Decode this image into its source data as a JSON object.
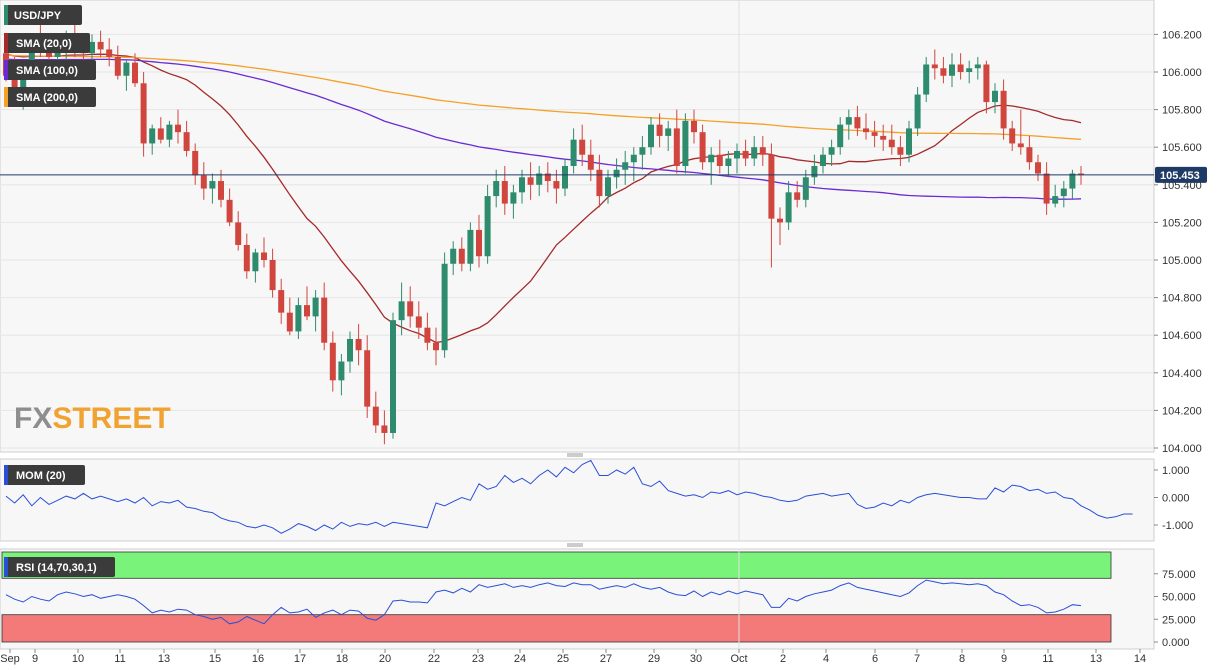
{
  "chart_data": [
    {
      "type": "candlestick",
      "symbol": "USD/JPY",
      "ylim": [
        104.0,
        106.25
      ],
      "y_ticks": [
        "106.200",
        "106.000",
        "105.800",
        "105.600",
        "105.400",
        "105.200",
        "105.000",
        "104.800",
        "104.600",
        "104.400",
        "104.200",
        "104.000"
      ],
      "x_ticks": [
        "Sep",
        "9",
        "10",
        "11",
        "13",
        "15",
        "16",
        "17",
        "18",
        "20",
        "22",
        "23",
        "24",
        "25",
        "27",
        "29",
        "30",
        "Oct",
        "2",
        "4",
        "6",
        "7",
        "8",
        "9",
        "11",
        "13",
        "14"
      ],
      "last_price": "105.453",
      "candles": [
        [
          106.1,
          106.18,
          105.95,
          105.98
        ],
        [
          105.98,
          106.08,
          105.84,
          105.92
        ],
        [
          105.92,
          106.06,
          105.8,
          106.02
        ],
        [
          106.02,
          106.2,
          105.98,
          106.15
        ],
        [
          106.15,
          106.25,
          106.08,
          106.12
        ],
        [
          106.12,
          106.2,
          106.02,
          106.08
        ],
        [
          106.08,
          106.16,
          106.0,
          106.12
        ],
        [
          106.12,
          106.22,
          106.05,
          106.18
        ],
        [
          106.18,
          106.25,
          106.08,
          106.14
        ],
        [
          106.14,
          106.2,
          106.06,
          106.1
        ],
        [
          106.1,
          106.2,
          106.04,
          106.16
        ],
        [
          106.16,
          106.22,
          106.08,
          106.12
        ],
        [
          106.12,
          106.18,
          106.03,
          106.08
        ],
        [
          106.08,
          106.14,
          105.96,
          105.98
        ],
        [
          105.98,
          106.06,
          105.9,
          106.05
        ],
        [
          106.05,
          106.1,
          105.92,
          105.94
        ],
        [
          105.94,
          106.0,
          105.55,
          105.62
        ],
        [
          105.62,
          105.72,
          105.56,
          105.7
        ],
        [
          105.7,
          105.76,
          105.62,
          105.64
        ],
        [
          105.64,
          105.74,
          105.6,
          105.72
        ],
        [
          105.72,
          105.8,
          105.62,
          105.68
        ],
        [
          105.68,
          105.74,
          105.55,
          105.58
        ],
        [
          105.58,
          105.62,
          105.4,
          105.45
        ],
        [
          105.45,
          105.52,
          105.32,
          105.38
        ],
        [
          105.38,
          105.46,
          105.3,
          105.42
        ],
        [
          105.42,
          105.48,
          105.28,
          105.32
        ],
        [
          105.32,
          105.38,
          105.18,
          105.2
        ],
        [
          105.2,
          105.26,
          105.05,
          105.08
        ],
        [
          105.08,
          105.14,
          104.9,
          104.94
        ],
        [
          104.94,
          105.06,
          104.88,
          105.04
        ],
        [
          105.04,
          105.12,
          104.96,
          105.0
        ],
        [
          105.0,
          105.06,
          104.8,
          104.84
        ],
        [
          104.84,
          104.9,
          104.66,
          104.72
        ],
        [
          104.72,
          104.8,
          104.6,
          104.62
        ],
        [
          104.62,
          104.8,
          104.58,
          104.76
        ],
        [
          104.76,
          104.86,
          104.68,
          104.7
        ],
        [
          104.7,
          104.84,
          104.62,
          104.8
        ],
        [
          104.8,
          104.88,
          104.52,
          104.56
        ],
        [
          104.56,
          104.62,
          104.3,
          104.36
        ],
        [
          104.36,
          104.5,
          104.28,
          104.46
        ],
        [
          104.46,
          104.62,
          104.4,
          104.58
        ],
        [
          104.58,
          104.66,
          104.44,
          104.52
        ],
        [
          104.52,
          104.6,
          104.16,
          104.22
        ],
        [
          104.22,
          104.3,
          104.08,
          104.12
        ],
        [
          104.12,
          104.2,
          104.02,
          104.08
        ],
        [
          104.08,
          104.72,
          104.05,
          104.68
        ],
        [
          104.68,
          104.88,
          104.6,
          104.78
        ],
        [
          104.78,
          104.86,
          104.64,
          104.7
        ],
        [
          104.7,
          104.78,
          104.58,
          104.64
        ],
        [
          104.64,
          104.72,
          104.52,
          104.56
        ],
        [
          104.56,
          104.64,
          104.44,
          104.52
        ],
        [
          104.52,
          105.04,
          104.48,
          104.98
        ],
        [
          104.98,
          105.1,
          104.92,
          105.06
        ],
        [
          105.06,
          105.12,
          104.94,
          104.98
        ],
        [
          104.98,
          105.2,
          104.94,
          105.16
        ],
        [
          105.16,
          105.24,
          104.96,
          105.02
        ],
        [
          105.02,
          105.4,
          104.98,
          105.34
        ],
        [
          105.34,
          105.48,
          105.28,
          105.42
        ],
        [
          105.42,
          105.5,
          105.24,
          105.3
        ],
        [
          105.3,
          105.4,
          105.22,
          105.36
        ],
        [
          105.36,
          105.48,
          105.3,
          105.44
        ],
        [
          105.44,
          105.52,
          105.32,
          105.4
        ],
        [
          105.4,
          105.5,
          105.34,
          105.46
        ],
        [
          105.46,
          105.52,
          105.36,
          105.42
        ],
        [
          105.42,
          105.48,
          105.3,
          105.38
        ],
        [
          105.38,
          105.54,
          105.34,
          105.5
        ],
        [
          105.5,
          105.7,
          105.46,
          105.64
        ],
        [
          105.64,
          105.72,
          105.5,
          105.56
        ],
        [
          105.56,
          105.64,
          105.42,
          105.48
        ],
        [
          105.48,
          105.56,
          105.28,
          105.34
        ],
        [
          105.34,
          105.48,
          105.3,
          105.44
        ],
        [
          105.44,
          105.54,
          105.38,
          105.48
        ],
        [
          105.48,
          105.58,
          105.4,
          105.52
        ],
        [
          105.52,
          105.6,
          105.42,
          105.56
        ],
        [
          105.56,
          105.66,
          105.48,
          105.6
        ],
        [
          105.6,
          105.76,
          105.56,
          105.72
        ],
        [
          105.72,
          105.78,
          105.6,
          105.66
        ],
        [
          105.66,
          105.74,
          105.58,
          105.7
        ],
        [
          105.7,
          105.8,
          105.46,
          105.5
        ],
        [
          105.5,
          105.78,
          105.46,
          105.74
        ],
        [
          105.74,
          105.8,
          105.62,
          105.68
        ],
        [
          105.68,
          105.72,
          105.48,
          105.52
        ],
        [
          105.52,
          105.6,
          105.4,
          105.56
        ],
        [
          105.56,
          105.64,
          105.46,
          105.5
        ],
        [
          105.5,
          105.58,
          105.44,
          105.54
        ],
        [
          105.54,
          105.62,
          105.46,
          105.58
        ],
        [
          105.58,
          105.64,
          105.5,
          105.54
        ],
        [
          105.54,
          105.66,
          105.5,
          105.6
        ],
        [
          105.6,
          105.66,
          105.5,
          105.56
        ],
        [
          105.56,
          105.62,
          104.96,
          105.22
        ],
        [
          105.22,
          105.28,
          105.08,
          105.2
        ],
        [
          105.2,
          105.42,
          105.16,
          105.36
        ],
        [
          105.36,
          105.42,
          105.28,
          105.32
        ],
        [
          105.32,
          105.48,
          105.28,
          105.44
        ],
        [
          105.44,
          105.56,
          105.4,
          105.5
        ],
        [
          105.5,
          105.6,
          105.46,
          105.56
        ],
        [
          105.56,
          105.64,
          105.5,
          105.6
        ],
        [
          105.6,
          105.76,
          105.56,
          105.72
        ],
        [
          105.72,
          105.8,
          105.64,
          105.76
        ],
        [
          105.76,
          105.82,
          105.66,
          105.7
        ],
        [
          105.7,
          105.78,
          105.64,
          105.68
        ],
        [
          105.68,
          105.74,
          105.6,
          105.66
        ],
        [
          105.66,
          105.72,
          105.58,
          105.64
        ],
        [
          105.64,
          105.72,
          105.56,
          105.6
        ],
        [
          105.6,
          105.66,
          105.5,
          105.56
        ],
        [
          105.56,
          105.74,
          105.52,
          105.7
        ],
        [
          105.7,
          105.92,
          105.66,
          105.88
        ],
        [
          105.88,
          106.08,
          105.84,
          106.04
        ],
        [
          106.04,
          106.12,
          105.96,
          106.02
        ],
        [
          106.02,
          106.08,
          105.94,
          105.98
        ],
        [
          105.98,
          106.1,
          105.92,
          106.04
        ],
        [
          106.04,
          106.1,
          105.96,
          106.0
        ],
        [
          106.0,
          106.06,
          105.94,
          106.02
        ],
        [
          106.02,
          106.08,
          105.96,
          106.04
        ],
        [
          106.04,
          106.06,
          105.78,
          105.84
        ],
        [
          105.84,
          105.94,
          105.78,
          105.9
        ],
        [
          105.9,
          105.96,
          105.64,
          105.7
        ],
        [
          105.7,
          105.74,
          105.58,
          105.62
        ],
        [
          105.62,
          105.8,
          105.56,
          105.6
        ],
        [
          105.6,
          105.66,
          105.48,
          105.52
        ],
        [
          105.52,
          105.56,
          105.42,
          105.46
        ],
        [
          105.46,
          105.52,
          105.24,
          105.3
        ],
        [
          105.3,
          105.4,
          105.28,
          105.34
        ],
        [
          105.34,
          105.42,
          105.28,
          105.38
        ],
        [
          105.38,
          105.48,
          105.32,
          105.46
        ],
        [
          105.46,
          105.5,
          105.4,
          105.453
        ]
      ],
      "series": [
        {
          "name": "SMA (20,0)",
          "color": "#a52a2a",
          "values": []
        },
        {
          "name": "SMA (100,0)",
          "color": "#6a2bd4",
          "values": []
        },
        {
          "name": "SMA (200,0)",
          "color": "#f4a128",
          "values": []
        }
      ],
      "colors": {
        "up": "#2e8b6e",
        "down": "#d0463e",
        "price_line": "#1f3a64"
      }
    },
    {
      "type": "line",
      "name": "MOM (20)",
      "ylim": [
        -1.5,
        1.6
      ],
      "y_ticks": [
        "1.000",
        "0.000",
        "-1.000"
      ],
      "color": "#2a4fd6",
      "values": [
        0.05,
        -0.2,
        0.1,
        -0.3,
        0.0,
        -0.25,
        -0.1,
        0.05,
        -0.05,
        0.15,
        -0.05,
        0.05,
        -0.05,
        -0.15,
        -0.05,
        -0.2,
        0.0,
        -0.3,
        -0.15,
        -0.2,
        -0.1,
        -0.35,
        -0.4,
        -0.5,
        -0.55,
        -0.75,
        -0.85,
        -0.9,
        -1.05,
        -1.1,
        -1.0,
        -1.1,
        -1.3,
        -1.15,
        -0.95,
        -1.05,
        -1.2,
        -1.0,
        -1.15,
        -0.9,
        -1.05,
        -0.95,
        -1.0,
        -0.9,
        -1.05,
        -0.9,
        -0.95,
        -1.0,
        -1.05,
        -1.1,
        -0.2,
        -0.3,
        -0.15,
        0.0,
        -0.1,
        0.5,
        0.3,
        0.4,
        0.8,
        0.55,
        0.7,
        0.5,
        0.8,
        1.0,
        0.75,
        1.1,
        0.9,
        1.2,
        1.35,
        0.8,
        0.8,
        1.0,
        0.85,
        1.1,
        0.5,
        0.4,
        0.6,
        0.25,
        0.15,
        0.05,
        0.1,
        0.0,
        0.2,
        0.15,
        0.25,
        0.1,
        0.2,
        0.15,
        0.05,
        0.0,
        -0.1,
        -0.15,
        -0.1,
        0.05,
        0.1,
        0.15,
        0.05,
        0.1,
        0.15,
        -0.25,
        -0.4,
        -0.35,
        -0.2,
        -0.3,
        -0.1,
        -0.2,
        0.0,
        0.1,
        0.15,
        0.1,
        0.05,
        0.0,
        0.0,
        -0.05,
        -0.05,
        0.35,
        0.2,
        0.45,
        0.4,
        0.25,
        0.3,
        0.15,
        0.2,
        0.0,
        -0.05,
        -0.3,
        -0.45,
        -0.65,
        -0.75,
        -0.7,
        -0.6,
        -0.6
      ]
    },
    {
      "type": "line",
      "name": "RSI (14,70,30,1)",
      "ylim": [
        0,
        100
      ],
      "y_ticks": [
        "75.000",
        "50.000",
        "25.000",
        "0.000"
      ],
      "overbought": 70,
      "oversold": 30,
      "color": "#2a4fd6",
      "band_colors": {
        "upper": "#7af37a",
        "lower": "#f47a7a"
      },
      "values": [
        52,
        47,
        44,
        50,
        47,
        45,
        52,
        55,
        53,
        50,
        52,
        48,
        50,
        52,
        50,
        47,
        40,
        32,
        35,
        33,
        36,
        35,
        30,
        28,
        25,
        27,
        20,
        22,
        28,
        24,
        20,
        30,
        38,
        32,
        33,
        36,
        27,
        32,
        35,
        30,
        35,
        34,
        26,
        24,
        30,
        45,
        46,
        44,
        44,
        43,
        55,
        57,
        54,
        59,
        55,
        63,
        60,
        62,
        64,
        60,
        62,
        60,
        63,
        65,
        62,
        61,
        65,
        63,
        63,
        58,
        60,
        62,
        60,
        64,
        60,
        58,
        60,
        55,
        52,
        51,
        56,
        50,
        55,
        52,
        56,
        53,
        56,
        54,
        52,
        38,
        38,
        48,
        45,
        50,
        53,
        55,
        57,
        62,
        65,
        60,
        58,
        56,
        54,
        52,
        50,
        54,
        62,
        68,
        66,
        64,
        65,
        64,
        63,
        64,
        62,
        55,
        52,
        45,
        40,
        41,
        38,
        32,
        33,
        36,
        41,
        40
      ]
    }
  ],
  "watermark": {
    "part1": "FX",
    "part2": "STREET"
  }
}
